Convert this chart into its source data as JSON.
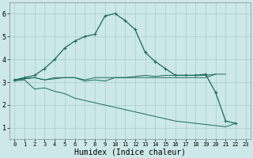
{
  "xlabel": "Humidex (Indice chaleur)",
  "x": [
    0,
    1,
    2,
    3,
    4,
    5,
    6,
    7,
    8,
    9,
    10,
    11,
    12,
    13,
    14,
    15,
    16,
    17,
    18,
    19,
    20,
    21,
    22,
    23
  ],
  "line1": [
    3.1,
    3.15,
    3.2,
    3.1,
    3.2,
    3.2,
    3.2,
    3.1,
    3.2,
    3.2,
    3.2,
    3.2,
    3.2,
    3.2,
    3.2,
    3.2,
    3.2,
    3.2,
    3.2,
    3.2,
    3.35,
    3.35,
    null,
    null
  ],
  "line2": [
    3.1,
    3.15,
    3.2,
    3.1,
    3.15,
    3.2,
    3.2,
    3.05,
    3.1,
    3.05,
    3.2,
    3.2,
    3.25,
    3.3,
    3.25,
    3.3,
    3.3,
    3.3,
    3.3,
    3.3,
    3.35,
    null,
    null,
    null
  ],
  "line3": [
    3.1,
    3.2,
    3.3,
    3.6,
    4.0,
    4.5,
    4.8,
    5.0,
    5.1,
    5.9,
    6.0,
    5.7,
    5.3,
    4.3,
    3.9,
    3.6,
    3.3,
    3.3,
    3.3,
    3.35,
    2.55,
    1.3,
    1.2,
    null
  ],
  "line4": [
    3.05,
    3.1,
    2.7,
    2.75,
    2.6,
    2.5,
    2.3,
    2.2,
    2.1,
    2.0,
    1.9,
    1.8,
    1.7,
    1.6,
    1.5,
    1.4,
    1.3,
    1.25,
    1.2,
    1.15,
    1.1,
    1.05,
    1.2,
    null
  ],
  "color": "#1a6b5a",
  "bg_color": "#cce8e8",
  "grid_color": "#aacccc",
  "ylim": [
    0.5,
    6.5
  ],
  "xlim": [
    -0.5,
    23.5
  ],
  "yticks": [
    1,
    2,
    3,
    4,
    5,
    6
  ],
  "xticks": [
    0,
    1,
    2,
    3,
    4,
    5,
    6,
    7,
    8,
    9,
    10,
    11,
    12,
    13,
    14,
    15,
    16,
    17,
    18,
    19,
    20,
    21,
    22,
    23
  ],
  "xlabel_fontsize": 7,
  "ytick_fontsize": 6,
  "xtick_fontsize": 5
}
